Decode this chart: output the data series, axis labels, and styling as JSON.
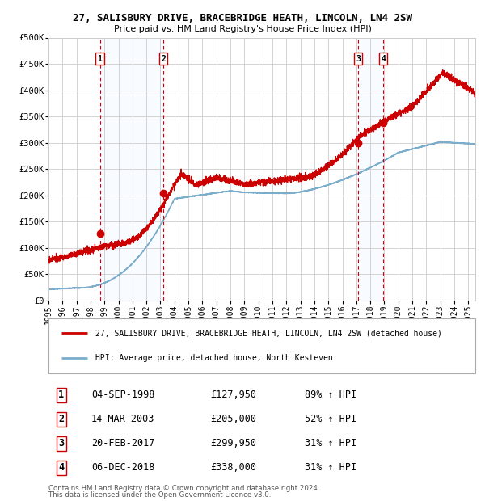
{
  "title": "27, SALISBURY DRIVE, BRACEBRIDGE HEATH, LINCOLN, LN4 2SW",
  "subtitle": "Price paid vs. HM Land Registry's House Price Index (HPI)",
  "legend_line1": "27, SALISBURY DRIVE, BRACEBRIDGE HEATH, LINCOLN, LN4 2SW (detached house)",
  "legend_line2": "HPI: Average price, detached house, North Kesteven",
  "footer1": "Contains HM Land Registry data © Crown copyright and database right 2024.",
  "footer2": "This data is licensed under the Open Government Licence v3.0.",
  "sale_points": [
    {
      "num": 1,
      "date": "04-SEP-1998",
      "price": 127950,
      "pct": "89%",
      "dir": "↑",
      "year": 1998.67
    },
    {
      "num": 2,
      "date": "14-MAR-2003",
      "price": 205000,
      "pct": "52%",
      "dir": "↑",
      "year": 2003.2
    },
    {
      "num": 3,
      "date": "20-FEB-2017",
      "price": 299950,
      "pct": "31%",
      "dir": "↑",
      "year": 2017.13
    },
    {
      "num": 4,
      "date": "06-DEC-2018",
      "price": 338000,
      "pct": "31%",
      "dir": "↑",
      "year": 2018.92
    }
  ],
  "sale_prices": [
    127950,
    205000,
    299950,
    338000
  ],
  "red_line_color": "#cc0000",
  "blue_line_color": "#7aadcc",
  "shade_color": "#ddeeff",
  "vline_color": "#cc0000",
  "grid_color": "#cccccc",
  "box_color": "#cc0000",
  "ylim": [
    0,
    500000
  ],
  "xlim_start": 1995.0,
  "xlim_end": 2025.5,
  "xtick_years": [
    1995,
    1996,
    1997,
    1998,
    1999,
    2000,
    2001,
    2002,
    2003,
    2004,
    2005,
    2006,
    2007,
    2008,
    2009,
    2010,
    2011,
    2012,
    2013,
    2014,
    2015,
    2016,
    2017,
    2018,
    2019,
    2020,
    2021,
    2022,
    2023,
    2024,
    2025
  ],
  "ytick_values": [
    0,
    50000,
    100000,
    150000,
    200000,
    250000,
    300000,
    350000,
    400000,
    450000,
    500000
  ],
  "ytick_labels": [
    "£0",
    "£50K",
    "£100K",
    "£150K",
    "£200K",
    "£250K",
    "£300K",
    "£350K",
    "£400K",
    "£450K",
    "£500K"
  ]
}
